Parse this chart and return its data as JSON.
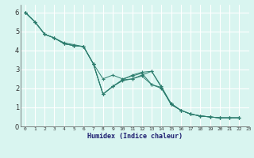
{
  "title": "",
  "xlabel": "Humidex (Indice chaleur)",
  "ylabel": "",
  "color": "#2d7d6e",
  "bg_color": "#d9f5f0",
  "grid_color": "#ffffff",
  "xlim": [
    -0.5,
    23
  ],
  "ylim": [
    0,
    6.4
  ],
  "xticks": [
    0,
    1,
    2,
    3,
    4,
    5,
    6,
    7,
    8,
    9,
    10,
    11,
    12,
    13,
    14,
    15,
    16,
    17,
    18,
    19,
    20,
    21,
    22,
    23
  ],
  "yticks": [
    0,
    1,
    2,
    3,
    4,
    5,
    6
  ],
  "lines": [
    [
      0,
      6.0,
      1,
      5.5,
      2,
      4.85,
      3,
      4.65,
      4,
      4.35,
      5,
      4.25,
      6,
      4.2,
      7,
      3.3,
      8,
      1.7,
      9,
      2.1,
      10,
      2.45,
      11,
      2.7,
      12,
      2.85,
      13,
      2.9,
      14,
      2.1,
      15,
      1.2,
      16,
      0.85,
      17,
      0.65,
      18,
      0.55,
      19,
      0.5,
      20,
      0.45,
      21,
      0.45,
      22,
      0.45
    ],
    [
      0,
      6.0,
      1,
      5.5,
      2,
      4.85,
      3,
      4.65,
      4,
      4.35,
      5,
      4.25,
      6,
      4.2,
      7,
      3.3,
      8,
      1.7,
      9,
      2.1,
      10,
      2.45,
      11,
      2.5,
      12,
      2.65,
      13,
      2.2,
      14,
      2.05,
      15,
      1.15,
      16,
      0.85,
      17,
      0.65,
      18,
      0.55,
      19,
      0.5,
      20,
      0.45,
      21,
      0.45,
      22,
      0.45
    ],
    [
      0,
      6.0,
      1,
      5.5,
      2,
      4.85,
      3,
      4.65,
      4,
      4.4,
      5,
      4.3,
      6,
      4.2,
      7,
      3.3,
      8,
      2.5,
      9,
      2.7,
      10,
      2.5,
      11,
      2.65,
      12,
      2.8,
      13,
      2.2,
      14,
      2.0,
      15,
      1.2,
      16,
      0.85,
      17,
      0.65,
      18,
      0.55,
      19,
      0.5,
      20,
      0.45,
      21,
      0.45,
      22,
      0.45
    ],
    [
      0,
      6.0,
      1,
      5.5,
      2,
      4.85,
      3,
      4.65,
      4,
      4.35,
      5,
      4.25,
      6,
      4.2,
      7,
      3.3,
      8,
      1.7,
      9,
      2.1,
      10,
      2.4,
      11,
      2.5,
      12,
      2.7,
      13,
      2.9,
      14,
      2.05,
      15,
      1.15,
      16,
      0.85,
      17,
      0.65,
      18,
      0.55,
      19,
      0.5,
      20,
      0.45,
      21,
      0.45,
      22,
      0.45
    ]
  ]
}
